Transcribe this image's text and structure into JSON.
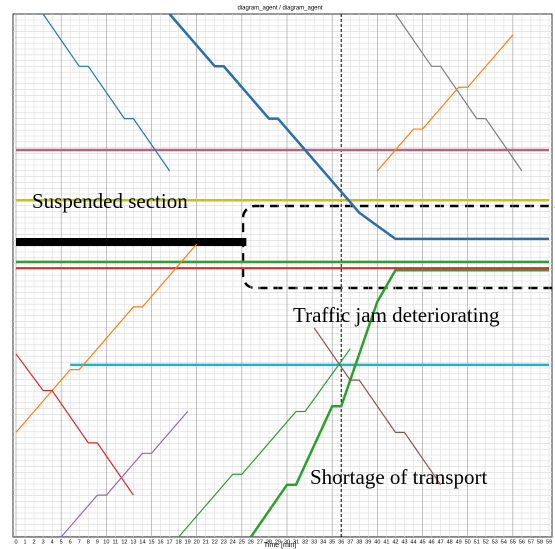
{
  "chart_data": {
    "type": "line",
    "title": "diagram_agent / diagram_agent",
    "x_label": "Time [min]",
    "xlim": [
      0,
      59
    ],
    "ylim": [
      0,
      100
    ],
    "xticks": [
      0,
      1,
      2,
      3,
      4,
      5,
      6,
      7,
      8,
      9,
      10,
      11,
      12,
      13,
      14,
      15,
      16,
      17,
      18,
      19,
      20,
      21,
      22,
      23,
      24,
      25,
      26,
      27,
      28,
      29,
      30,
      31,
      32,
      33,
      34,
      35,
      36,
      37,
      38,
      39,
      40,
      41,
      42,
      43,
      44,
      45,
      46,
      47,
      48,
      49,
      50,
      51,
      52,
      53,
      54,
      55,
      56,
      57,
      58,
      59
    ],
    "grid": true,
    "vline": 36,
    "annotations": [
      "Suspended section",
      "Traffic jam deteriorating",
      "Shortage of transport"
    ],
    "series": [
      {
        "color": "#c06080",
        "linewidth": 2.5,
        "x": [
          0,
          59
        ],
        "values": [
          74,
          74
        ]
      },
      {
        "color": "#c8c020",
        "linewidth": 2.5,
        "x": [
          0,
          59
        ],
        "values": [
          64.4,
          64.4
        ]
      },
      {
        "color": "#30a030",
        "linewidth": 2.5,
        "x": [
          0,
          59
        ],
        "values": [
          52.6,
          52.6
        ]
      },
      {
        "color": "#d03030",
        "linewidth": 2,
        "x": [
          0,
          59
        ],
        "values": [
          51.4,
          51.4
        ]
      },
      {
        "color": "#20b0d0",
        "linewidth": 2.5,
        "x": [
          6,
          59
        ],
        "values": [
          32.9,
          32.9
        ]
      },
      {
        "color": "#000000",
        "linewidth": 8,
        "x": [
          0,
          25.5
        ],
        "values": [
          56.4,
          56.4
        ]
      },
      {
        "color": "#1f77b4",
        "linewidth": 1.2,
        "x": [
          3,
          7,
          8,
          12,
          13,
          17
        ],
        "values": [
          100,
          90,
          90,
          80,
          80,
          70
        ]
      },
      {
        "color": "#ff7f0e",
        "linewidth": 1.2,
        "x": [
          0,
          6,
          7,
          13,
          14,
          20
        ],
        "values": [
          20,
          32,
          32,
          44,
          44,
          56
        ]
      },
      {
        "color": "#2ca02c",
        "linewidth": 1.2,
        "x": [
          18,
          24,
          25,
          31,
          32,
          37
        ],
        "values": [
          0,
          12,
          12,
          24,
          24,
          36
        ]
      },
      {
        "color": "#2ca02c",
        "linewidth": 2.5,
        "x": [
          26,
          30,
          31,
          35,
          36,
          40,
          42,
          59
        ],
        "values": [
          0,
          10,
          10,
          25,
          25,
          45,
          51,
          51
        ]
      },
      {
        "color": "#2b6fa8",
        "linewidth": 2.5,
        "x": [
          17,
          22,
          23,
          28,
          29,
          35,
          38,
          42,
          59
        ],
        "values": [
          100,
          90,
          90,
          80,
          80,
          68,
          62,
          57,
          57
        ]
      },
      {
        "color": "#d62728",
        "linewidth": 1.2,
        "x": [
          0,
          3,
          4,
          8,
          9,
          13
        ],
        "values": [
          35,
          28,
          28,
          18,
          18,
          8
        ]
      },
      {
        "color": "#9467bd",
        "linewidth": 1.2,
        "x": [
          5,
          9,
          10,
          14,
          15,
          19
        ],
        "values": [
          0,
          8,
          8,
          16,
          16,
          24
        ]
      },
      {
        "color": "#7f7f7f",
        "linewidth": 1.2,
        "x": [
          42,
          46,
          47,
          51,
          52,
          56
        ],
        "values": [
          100,
          90,
          90,
          80,
          80,
          70
        ]
      },
      {
        "color": "#ff7f0e",
        "linewidth": 1.2,
        "x": [
          40,
          44,
          45,
          49,
          50,
          55
        ],
        "values": [
          70,
          78,
          78,
          86,
          86,
          96
        ]
      },
      {
        "color": "#8c564b",
        "linewidth": 1.2,
        "x": [
          33,
          37,
          38,
          42,
          43,
          47
        ],
        "values": [
          40,
          30,
          30,
          20,
          20,
          10
        ]
      }
    ]
  }
}
